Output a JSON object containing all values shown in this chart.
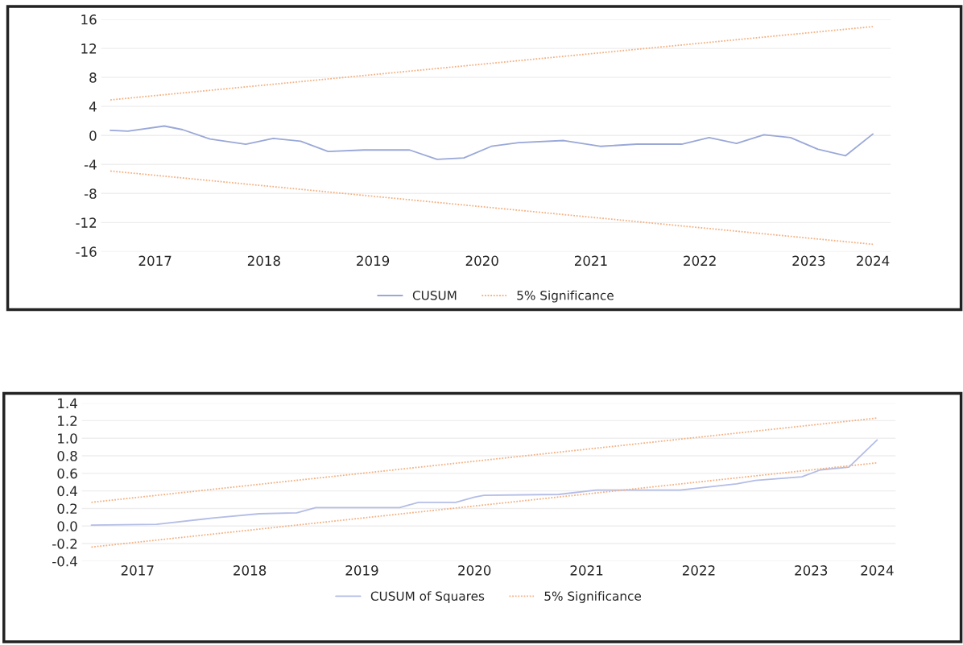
{
  "chart_data": [
    {
      "type": "line",
      "xlim": [
        "2017-01",
        "2024-04"
      ],
      "ylim": [
        -16,
        16
      ],
      "yticks": [
        -16,
        -12,
        -8,
        -4,
        0,
        4,
        8,
        12,
        16
      ],
      "xticks": [
        {
          "value": "2017-07",
          "label": "2017"
        },
        {
          "value": "2018-07",
          "label": "2018"
        },
        {
          "value": "2019-07",
          "label": "2019"
        },
        {
          "value": "2020-07",
          "label": "2020"
        },
        {
          "value": "2021-07",
          "label": "2021"
        },
        {
          "value": "2022-07",
          "label": "2022"
        },
        {
          "value": "2023-07",
          "label": "2023"
        },
        {
          "value": "2024-02",
          "label": "2024"
        }
      ],
      "grid": "y",
      "legend": "bottom",
      "series": [
        {
          "name": "CUSUM",
          "color": "#9aa8d8",
          "line_style": "solid",
          "x": [
            "2017-02",
            "2017-04",
            "2017-08",
            "2017-10",
            "2018-01",
            "2018-05",
            "2018-08",
            "2018-11",
            "2019-02",
            "2019-06",
            "2019-11",
            "2020-02",
            "2020-05",
            "2020-08",
            "2020-11",
            "2021-04",
            "2021-08",
            "2021-12",
            "2022-05",
            "2022-08",
            "2022-11",
            "2023-02",
            "2023-05",
            "2023-08",
            "2023-11",
            "2024-02"
          ],
          "values": [
            0.7,
            0.6,
            1.3,
            0.8,
            -0.5,
            -1.2,
            -0.4,
            -0.8,
            -2.2,
            -2.0,
            -2.0,
            -3.3,
            -3.1,
            -1.5,
            -1.0,
            -0.7,
            -1.5,
            -1.2,
            -1.2,
            -0.3,
            -1.1,
            0.1,
            -0.3,
            -1.9,
            -2.8,
            0.2
          ]
        },
        {
          "name": "5% Significance",
          "color": "#f4b183",
          "line_style": "dotted",
          "x": [
            "2017-02",
            "2024-02"
          ],
          "values": [
            4.9,
            15.0
          ]
        },
        {
          "color": "#f4b183",
          "line_style": "dotted",
          "x": [
            "2017-02",
            "2024-02"
          ],
          "values": [
            -4.9,
            -15.0
          ]
        }
      ]
    },
    {
      "type": "line",
      "xlim": [
        "2017-01",
        "2024-04"
      ],
      "ylim": [
        -0.4,
        1.4
      ],
      "yticks": [
        -0.4,
        -0.2,
        {
          "value": 0,
          "label": "0.0"
        },
        0.2,
        0.4,
        0.6,
        0.8,
        {
          "value": 1,
          "label": "1.0"
        },
        1.2,
        1.4
      ],
      "xticks": [
        {
          "value": "2017-07",
          "label": "2017"
        },
        {
          "value": "2018-07",
          "label": "2018"
        },
        {
          "value": "2019-07",
          "label": "2019"
        },
        {
          "value": "2020-07",
          "label": "2020"
        },
        {
          "value": "2021-07",
          "label": "2021"
        },
        {
          "value": "2022-07",
          "label": "2022"
        },
        {
          "value": "2023-07",
          "label": "2023"
        },
        {
          "value": "2024-02",
          "label": "2024"
        }
      ],
      "grid": "y",
      "legend": "bottom",
      "series": [
        {
          "name": "CUSUM of Squares",
          "color": "#b4bde6",
          "line_style": "solid",
          "x": [
            "2017-02",
            "2017-09",
            "2018-03",
            "2018-08",
            "2018-12",
            "2019-02",
            "2019-11",
            "2020-01",
            "2020-05",
            "2020-07",
            "2020-08",
            "2021-04",
            "2021-08",
            "2022-05",
            "2022-11",
            "2023-01",
            "2023-06",
            "2023-08",
            "2023-11",
            "2024-02"
          ],
          "values": [
            0.01,
            0.02,
            0.09,
            0.14,
            0.15,
            0.21,
            0.21,
            0.27,
            0.27,
            0.33,
            0.35,
            0.36,
            0.41,
            0.41,
            0.48,
            0.52,
            0.56,
            0.64,
            0.67,
            0.98
          ]
        },
        {
          "name": "5% Significance",
          "color": "#f4b183",
          "line_style": "dotted",
          "x": [
            "2017-02",
            "2024-02"
          ],
          "values": [
            0.27,
            1.23
          ]
        },
        {
          "color": "#f4b183",
          "line_style": "dotted",
          "x": [
            "2017-02",
            "2024-02"
          ],
          "values": [
            -0.24,
            0.72
          ]
        }
      ]
    }
  ]
}
